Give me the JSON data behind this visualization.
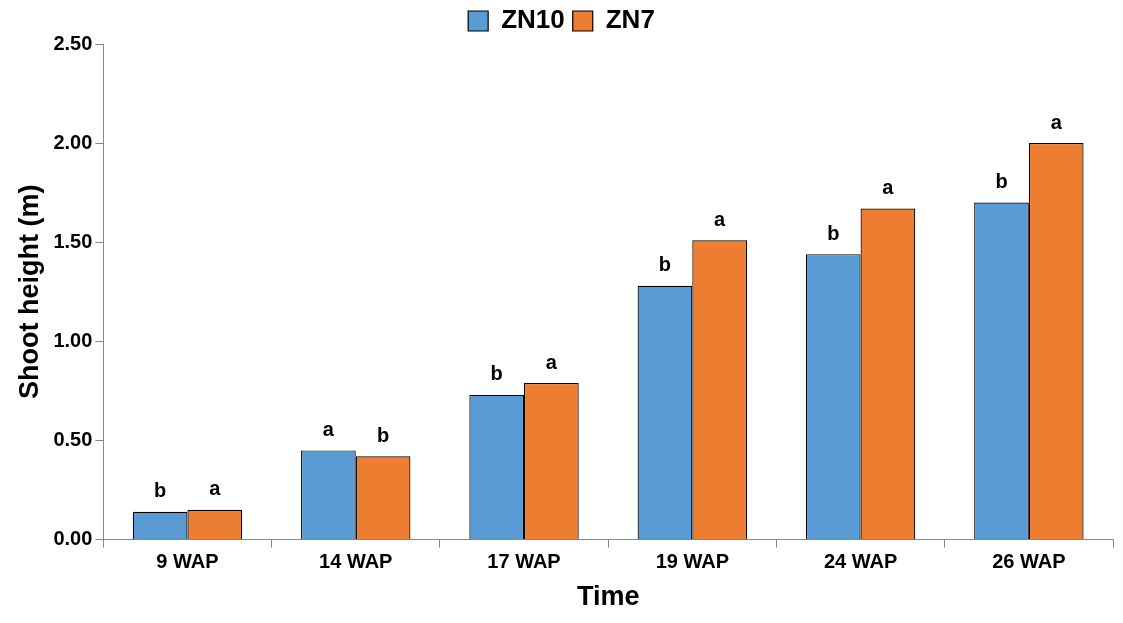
{
  "chart_data": {
    "type": "bar",
    "xlabel": "Time",
    "ylabel": "Shoot height (m)",
    "categories": [
      "9 WAP",
      "14 WAP",
      "17 WAP",
      "19 WAP",
      "24 WAP",
      "26 WAP"
    ],
    "series": [
      {
        "name": "ZN10",
        "color": "#5b9bd5",
        "values": [
          0.14,
          0.45,
          0.73,
          1.28,
          1.44,
          1.7
        ]
      },
      {
        "name": "ZN7",
        "color": "#ed7d31",
        "values": [
          0.15,
          0.42,
          0.79,
          1.51,
          1.67,
          2.0
        ]
      }
    ],
    "ylim": [
      0,
      2.5
    ],
    "yticks": [
      {
        "value": 0,
        "label": "0.00"
      },
      {
        "value": 0.5,
        "label": "0.50"
      },
      {
        "value": 1,
        "label": "1.00"
      },
      {
        "value": 1.5,
        "label": "1.50"
      },
      {
        "value": 2,
        "label": "2.00"
      },
      {
        "value": 2.5,
        "label": "2.50"
      }
    ],
    "grid": false,
    "legend": "top",
    "annotations": [
      {
        "text": "b",
        "x": "9 WAP",
        "y": 0.14
      },
      {
        "text": "a",
        "x": "9 WAP",
        "y": 0.15
      },
      {
        "text": "a",
        "x": "14 WAP",
        "y": 0.45
      },
      {
        "text": "b",
        "x": "14 WAP",
        "y": 0.42
      },
      {
        "text": "b",
        "x": "17 WAP",
        "y": 0.73
      },
      {
        "text": "a",
        "x": "17 WAP",
        "y": 0.79
      },
      {
        "text": "b",
        "x": "19 WAP",
        "y": 1.28
      },
      {
        "text": "a",
        "x": "19 WAP",
        "y": 1.51
      },
      {
        "text": "b",
        "x": "24 WAP",
        "y": 1.44
      },
      {
        "text": "a",
        "x": "24 WAP",
        "y": 1.67
      },
      {
        "text": "b",
        "x": "26 WAP",
        "y": 1.7
      },
      {
        "text": "a",
        "x": "26 WAP",
        "y": 2.0
      }
    ]
  }
}
